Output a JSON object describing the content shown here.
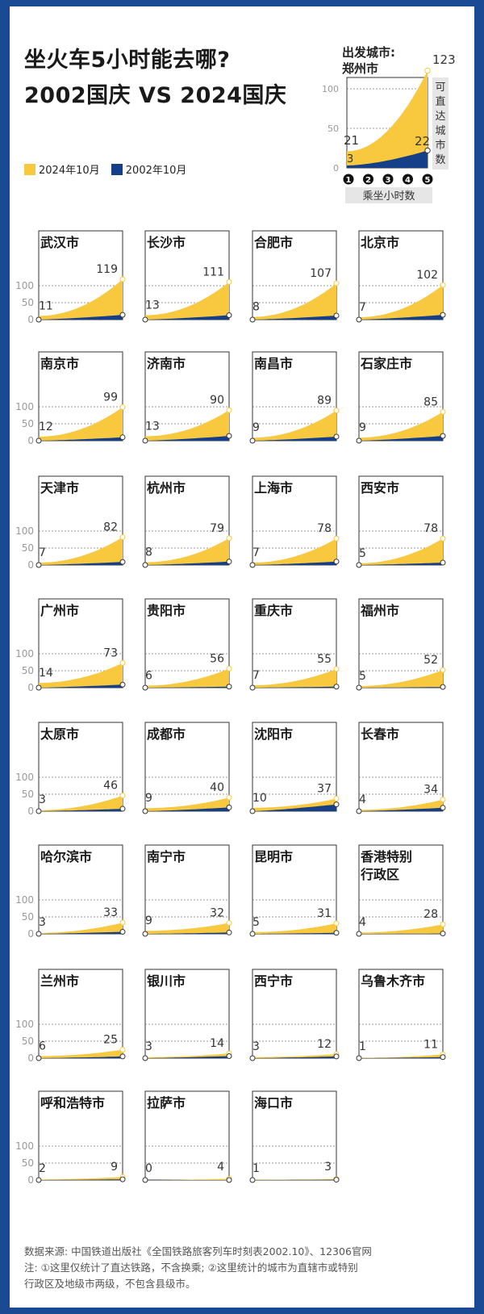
{
  "title_line1": "坐火车5小时能去哪?",
  "title_line2": "2002国庆 VS 2024国庆",
  "legend": {
    "new_label": "2024年10月",
    "old_label": "2002年10月",
    "new_color": "#f8c93e",
    "old_color": "#153f88"
  },
  "source_line": "数据来源: 中国铁道出版社《全国铁路旅客列车时刻表2002.10》、12306官网",
  "note_line1": "注: ①这里仅统计了直达铁路，不含换乘; ②这里统计的城市为直辖市或特别",
  "note_line2": "行政区及地级市两级，不包含县级市。",
  "chart_data": {
    "type": "area",
    "key_chart": {
      "city_label": [
        "出发城市:",
        "郑州市"
      ],
      "ylabel": "可直达城市数",
      "xlabel": "乘坐小时数",
      "x_ticks": [
        "1",
        "2",
        "3",
        "4",
        "5"
      ],
      "y_ticks": [
        0,
        50,
        100
      ],
      "ylim": [
        0,
        130
      ],
      "series": [
        {
          "name": "2024年10月",
          "start": 21,
          "end": 123
        },
        {
          "name": "2002年10月",
          "start": 3,
          "end": 22
        }
      ]
    },
    "small_multiples": {
      "y_ticks": [
        0,
        50,
        100
      ],
      "ylim": [
        0,
        120
      ],
      "cities": [
        {
          "name": [
            "武汉市"
          ],
          "v2024": [
            11,
            119
          ],
          "v2002": [
            0,
            14
          ]
        },
        {
          "name": [
            "长沙市"
          ],
          "v2024": [
            13,
            111
          ],
          "v2002": [
            0,
            13
          ]
        },
        {
          "name": [
            "合肥市"
          ],
          "v2024": [
            8,
            107
          ],
          "v2002": [
            0,
            12
          ]
        },
        {
          "name": [
            "北京市"
          ],
          "v2024": [
            7,
            102
          ],
          "v2002": [
            0,
            14
          ]
        },
        {
          "name": [
            "南京市"
          ],
          "v2024": [
            12,
            99
          ],
          "v2002": [
            0,
            10
          ]
        },
        {
          "name": [
            "济南市"
          ],
          "v2024": [
            13,
            90
          ],
          "v2002": [
            0,
            14
          ]
        },
        {
          "name": [
            "南昌市"
          ],
          "v2024": [
            9,
            89
          ],
          "v2002": [
            0,
            12
          ]
        },
        {
          "name": [
            "石家庄市"
          ],
          "v2024": [
            9,
            85
          ],
          "v2002": [
            0,
            14
          ]
        },
        {
          "name": [
            "天津市"
          ],
          "v2024": [
            7,
            82
          ],
          "v2002": [
            0,
            9
          ]
        },
        {
          "name": [
            "杭州市"
          ],
          "v2024": [
            8,
            79
          ],
          "v2002": [
            0,
            10
          ]
        },
        {
          "name": [
            "上海市"
          ],
          "v2024": [
            7,
            78
          ],
          "v2002": [
            0,
            10
          ]
        },
        {
          "name": [
            "西安市"
          ],
          "v2024": [
            5,
            78
          ],
          "v2002": [
            0,
            7
          ]
        },
        {
          "name": [
            "广州市"
          ],
          "v2024": [
            14,
            73
          ],
          "v2002": [
            0,
            9
          ]
        },
        {
          "name": [
            "贵阳市"
          ],
          "v2024": [
            6,
            56
          ],
          "v2002": [
            0,
            3
          ]
        },
        {
          "name": [
            "重庆市"
          ],
          "v2024": [
            7,
            55
          ],
          "v2002": [
            0,
            3
          ]
        },
        {
          "name": [
            "福州市"
          ],
          "v2024": [
            5,
            52
          ],
          "v2002": [
            0,
            2
          ]
        },
        {
          "name": [
            "太原市"
          ],
          "v2024": [
            3,
            46
          ],
          "v2002": [
            0,
            7
          ]
        },
        {
          "name": [
            "成都市"
          ],
          "v2024": [
            9,
            40
          ],
          "v2002": [
            0,
            11
          ]
        },
        {
          "name": [
            "沈阳市"
          ],
          "v2024": [
            10,
            37
          ],
          "v2002": [
            0,
            20
          ]
        },
        {
          "name": [
            "长春市"
          ],
          "v2024": [
            4,
            34
          ],
          "v2002": [
            0,
            10
          ]
        },
        {
          "name": [
            "哈尔滨市"
          ],
          "v2024": [
            3,
            33
          ],
          "v2002": [
            0,
            6
          ]
        },
        {
          "name": [
            "南宁市"
          ],
          "v2024": [
            9,
            32
          ],
          "v2002": [
            0,
            4
          ]
        },
        {
          "name": [
            "昆明市"
          ],
          "v2024": [
            5,
            31
          ],
          "v2002": [
            0,
            3
          ]
        },
        {
          "name": [
            "香港特别",
            "行政区"
          ],
          "v2024": [
            4,
            28
          ],
          "v2002": [
            0,
            1
          ]
        },
        {
          "name": [
            "兰州市"
          ],
          "v2024": [
            6,
            25
          ],
          "v2002": [
            0,
            5
          ]
        },
        {
          "name": [
            "银川市"
          ],
          "v2024": [
            3,
            14
          ],
          "v2002": [
            0,
            6
          ]
        },
        {
          "name": [
            "西宁市"
          ],
          "v2024": [
            3,
            12
          ],
          "v2002": [
            0,
            5
          ]
        },
        {
          "name": [
            "乌鲁木齐市"
          ],
          "v2024": [
            1,
            11
          ],
          "v2002": [
            0,
            3
          ]
        },
        {
          "name": [
            "呼和浩特市"
          ],
          "v2024": [
            2,
            9
          ],
          "v2002": [
            0,
            2
          ]
        },
        {
          "name": [
            "拉萨市"
          ],
          "v2024": [
            0,
            4
          ],
          "v2002": [
            0,
            0
          ]
        },
        {
          "name": [
            "海口市"
          ],
          "v2024": [
            1,
            3
          ],
          "v2002": [
            0,
            1
          ]
        }
      ]
    }
  }
}
